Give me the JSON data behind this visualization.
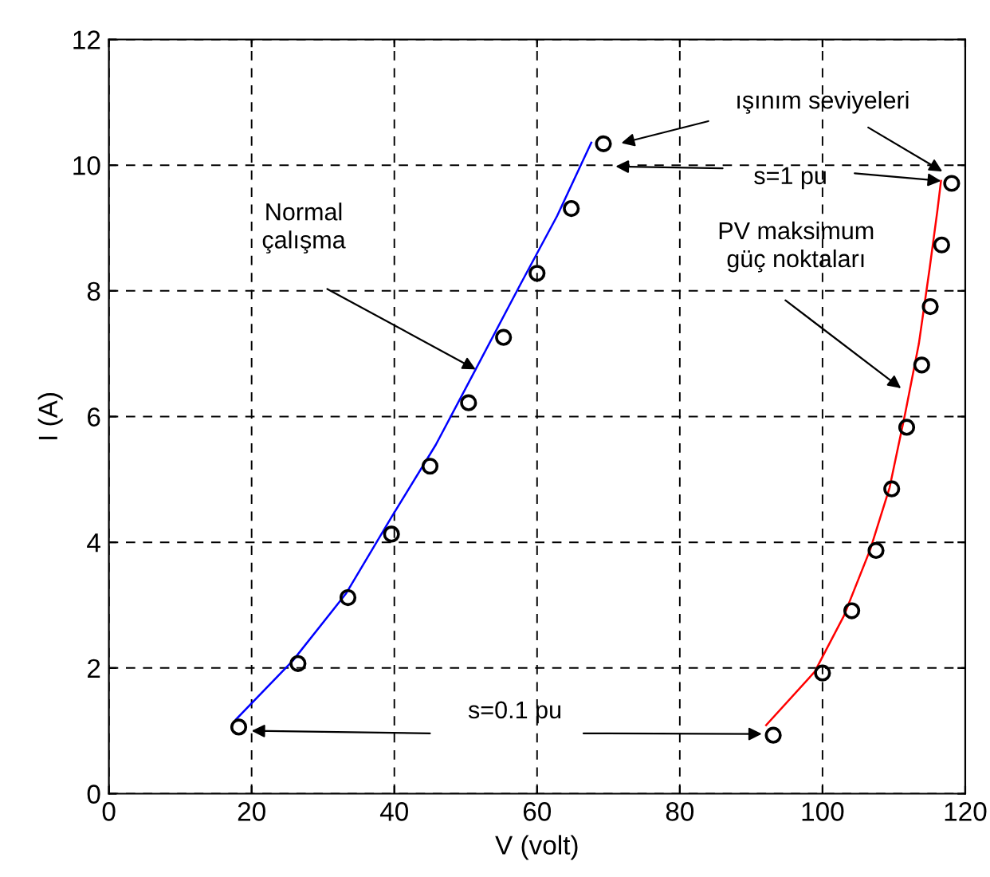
{
  "chart_data": {
    "type": "line",
    "xlabel": "V (volt)",
    "ylabel": "I (A)",
    "xlim": [
      0,
      120
    ],
    "ylim": [
      0,
      12
    ],
    "xticks": [
      0,
      20,
      40,
      60,
      80,
      100,
      120
    ],
    "yticks": [
      0,
      2,
      4,
      6,
      8,
      10,
      12
    ],
    "grid": true,
    "legend": false,
    "series": [
      {
        "color": "#0000ff",
        "line_style": "solid",
        "marker": "none",
        "x": [
          17.8,
          25.8,
          33.2,
          39.6,
          45.8,
          51.3,
          57.6,
          62.8,
          67.6
        ],
        "values": [
          1.18,
          2.12,
          3.18,
          4.4,
          5.55,
          6.73,
          8.09,
          9.19,
          10.36
        ]
      },
      {
        "type": "scatter",
        "color": "#000000",
        "marker": "circle",
        "x": [
          18.2,
          26.5,
          33.5,
          39.6,
          45.0,
          50.4,
          55.3,
          60.0,
          64.8,
          69.3
        ],
        "values": [
          1.06,
          2.07,
          3.12,
          4.13,
          5.21,
          6.22,
          7.26,
          8.28,
          9.31,
          10.34
        ]
      },
      {
        "color": "#ff0000",
        "line_style": "solid",
        "marker": "none",
        "x": [
          92.1,
          98.9,
          103.0,
          106.7,
          109.4,
          111.6,
          113.5,
          115.0,
          116.1,
          116.6
        ],
        "values": [
          1.09,
          1.94,
          2.83,
          3.89,
          4.87,
          6.06,
          7.16,
          8.35,
          9.28,
          9.75
        ]
      },
      {
        "type": "scatter",
        "color": "#000000",
        "marker": "circle",
        "x": [
          93.1,
          100.0,
          104.1,
          107.5,
          109.7,
          111.8,
          113.9,
          115.1,
          116.7,
          118.1
        ],
        "values": [
          0.93,
          1.92,
          2.91,
          3.87,
          4.85,
          5.83,
          6.82,
          7.75,
          8.73,
          9.71
        ]
      }
    ],
    "annotations": [
      "Normal\nçalışma",
      "PV maksimum\ngüç noktaları",
      "ışınım seviyeleri",
      {
        "text": "s=1 pu",
        "x": 116.6,
        "y": 9.75
      },
      "s=0.1 pu"
    ]
  }
}
